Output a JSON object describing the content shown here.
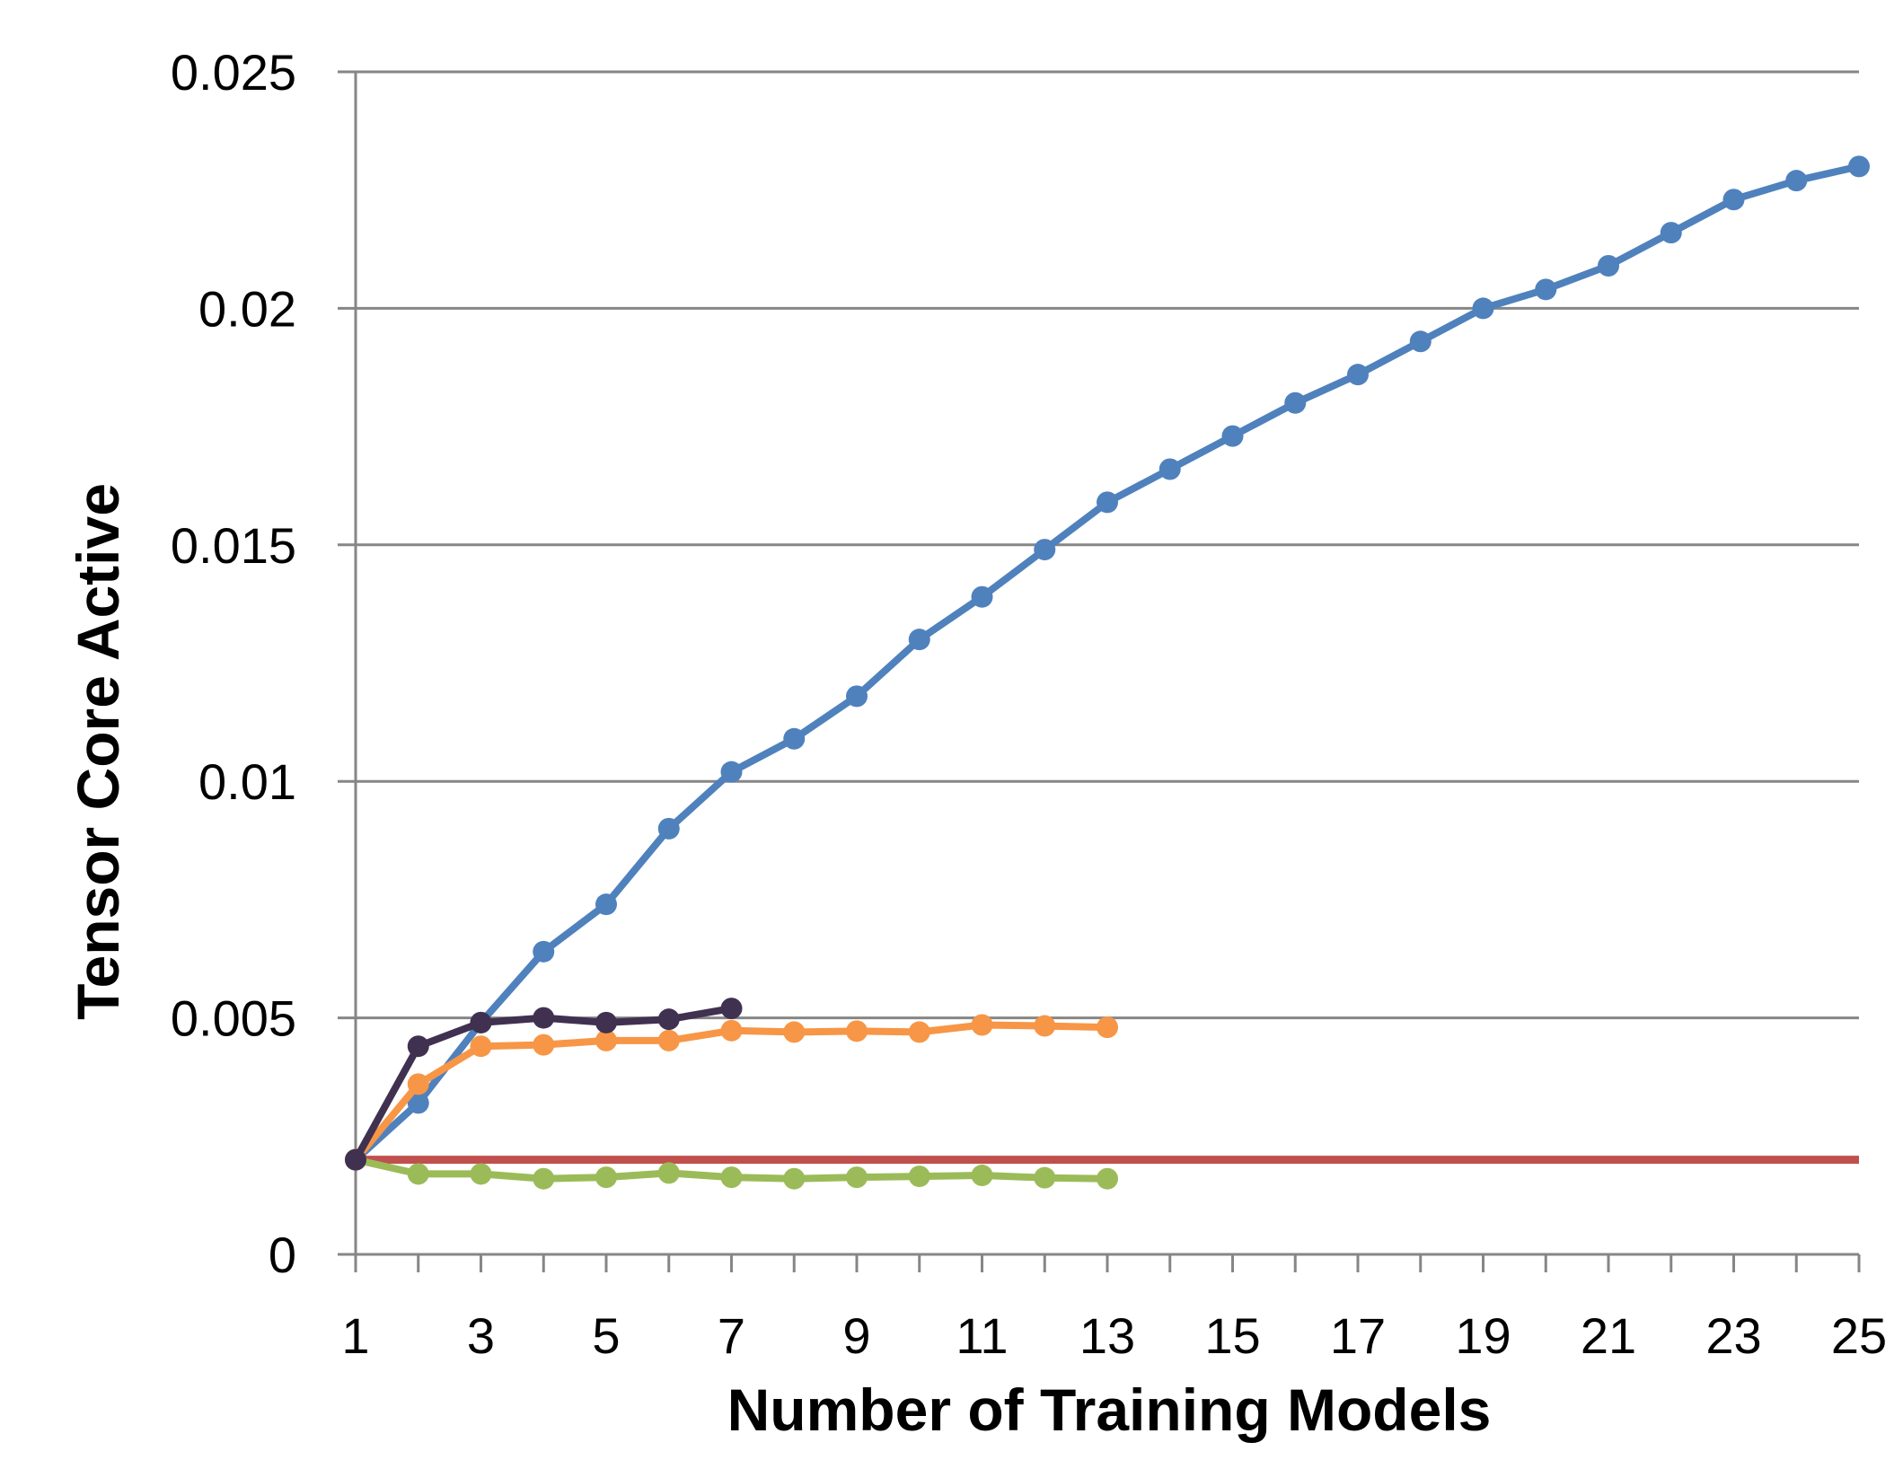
{
  "chart_data": {
    "type": "line",
    "title": "",
    "xlabel": "Number of Training Models",
    "ylabel": "Tensor Core Active",
    "xlim": [
      1,
      25
    ],
    "ylim": [
      0,
      0.025
    ],
    "x_tick_labels": [
      "1",
      "3",
      "5",
      "7",
      "9",
      "11",
      "13",
      "15",
      "17",
      "19",
      "21",
      "23",
      "25"
    ],
    "y_tick_labels": [
      "0",
      "0.005",
      "0.01",
      "0.015",
      "0.02",
      "0.025"
    ],
    "y_ticks": [
      0,
      0.005,
      0.01,
      0.015,
      0.02,
      0.025
    ],
    "grid": true,
    "legend": "none",
    "series": [
      {
        "color": "#4f81bd",
        "markers": true,
        "x": [
          1,
          2,
          3,
          4,
          5,
          6,
          7,
          8,
          9,
          10,
          11,
          12,
          13,
          14,
          15,
          16,
          17,
          18,
          19,
          20,
          21,
          22,
          23,
          24,
          25
        ],
        "values": [
          0.002,
          0.0032,
          0.0049,
          0.0064,
          0.0074,
          0.009,
          0.0102,
          0.0109,
          0.0118,
          0.013,
          0.0139,
          0.0149,
          0.0159,
          0.0166,
          0.0173,
          0.018,
          0.0186,
          0.0193,
          0.02,
          0.0204,
          0.0209,
          0.0216,
          0.0223,
          0.0227,
          0.023
        ]
      },
      {
        "color": "#c0504d",
        "markers": false,
        "x": [
          1,
          25
        ],
        "values": [
          0.002,
          0.002
        ]
      },
      {
        "color": "#9bbb59",
        "markers": true,
        "x": [
          1,
          2,
          3,
          4,
          5,
          6,
          7,
          8,
          9,
          10,
          11,
          12,
          13
        ],
        "values": [
          0.002,
          0.0017,
          0.0017,
          0.0016,
          0.00163,
          0.00172,
          0.00163,
          0.0016,
          0.00163,
          0.00165,
          0.00167,
          0.00162,
          0.0016
        ]
      },
      {
        "color": "#f79646",
        "markers": true,
        "x": [
          1,
          2,
          3,
          4,
          5,
          6,
          7,
          8,
          9,
          10,
          11,
          12,
          13
        ],
        "values": [
          0.002,
          0.0036,
          0.0044,
          0.00443,
          0.00452,
          0.00452,
          0.00473,
          0.0047,
          0.00472,
          0.0047,
          0.00485,
          0.00483,
          0.0048
        ]
      },
      {
        "color": "#403151",
        "markers": true,
        "x": [
          1,
          2,
          3,
          4,
          5,
          6,
          7
        ],
        "values": [
          0.002,
          0.0044,
          0.0049,
          0.005,
          0.0049,
          0.00497,
          0.0052
        ]
      }
    ]
  }
}
